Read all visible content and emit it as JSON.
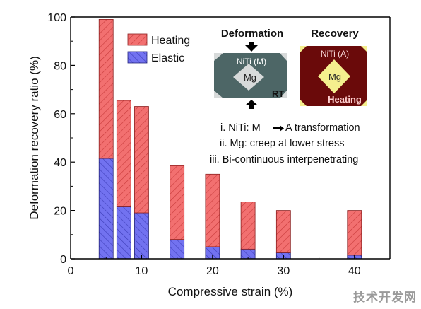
{
  "chart_data": {
    "type": "bar",
    "stacked": true,
    "x": [
      5,
      7.5,
      10,
      15,
      20,
      25,
      30,
      40
    ],
    "series": [
      {
        "name": "Elastic",
        "color": "#6a6aee",
        "values": [
          41.5,
          21.5,
          19,
          8,
          5,
          4,
          2.5,
          1.5
        ]
      },
      {
        "name": "Heating",
        "color": "#f06060",
        "values": [
          57.5,
          44,
          44,
          30.5,
          30,
          19.5,
          17.5,
          18.5
        ]
      }
    ],
    "totals": [
      99,
      65.5,
      63,
      38.5,
      35,
      23.5,
      20,
      20
    ],
    "xlabel": "Compressive strain (%)",
    "ylabel": "Deformation recovery ratio (%)",
    "xlim": [
      0,
      45
    ],
    "ylim": [
      0,
      100
    ],
    "xticks": [
      "0",
      "10",
      "20",
      "30",
      "40"
    ],
    "yticks": [
      "0",
      "20",
      "40",
      "60",
      "80",
      "100"
    ],
    "grid": false,
    "legend_position": "top-left",
    "legend": [
      "Heating",
      "Elastic"
    ]
  },
  "inset": {
    "deformation_title": "Deformation",
    "recovery_title": "Recovery",
    "niti_m": "NiTi (M)",
    "niti_a": "NiTi (A)",
    "mg_left": "Mg",
    "mg_right": "Mg",
    "rt": "RT",
    "heating": "Heating",
    "arrow_icon": "compression-arrow-icon"
  },
  "notes": [
    "i. NiTi: M",
    "A transformation",
    "ii. Mg:  creep at lower stress",
    "iii. Bi-continuous interpenetrating"
  ],
  "watermark": "技术开发网"
}
